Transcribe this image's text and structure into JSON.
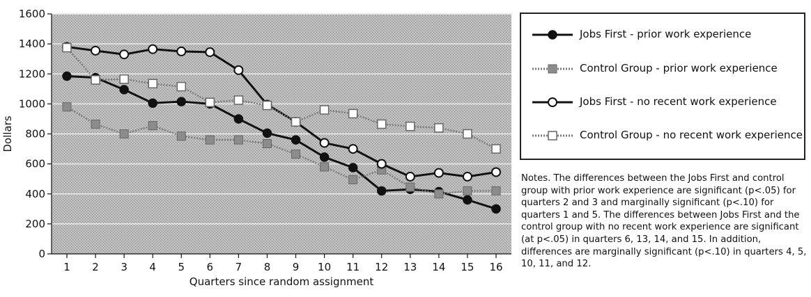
{
  "chart_data": {
    "type": "line",
    "title": "",
    "xlabel": "Quarters since random assignment",
    "ylabel": "Dollars",
    "ylim": [
      0,
      1600
    ],
    "yticks": [
      "0",
      "200",
      "400",
      "600",
      "800",
      "1000",
      "1200",
      "1400",
      "1600"
    ],
    "x": [
      "1",
      "2",
      "3",
      "4",
      "5",
      "6",
      "7",
      "8",
      "9",
      "10",
      "11",
      "12",
      "13",
      "14",
      "15",
      "16"
    ],
    "grid": true,
    "legend_position": "right",
    "series": [
      {
        "name": "Jobs First - prior work experience",
        "values": [
          1185,
          1175,
          1095,
          1005,
          1015,
          1000,
          900,
          805,
          760,
          645,
          575,
          420,
          430,
          415,
          360,
          300
        ],
        "color": "#111111",
        "marker": "filled-circle",
        "line": "solid"
      },
      {
        "name": "Control Group - prior work experience",
        "values": [
          980,
          865,
          800,
          855,
          785,
          760,
          760,
          735,
          665,
          580,
          495,
          560,
          445,
          400,
          420,
          420
        ],
        "color": "#777777",
        "marker": "filled-square",
        "line": "dotted"
      },
      {
        "name": "Jobs First - no recent work experience",
        "values": [
          1380,
          1355,
          1330,
          1365,
          1350,
          1345,
          1225,
          995,
          880,
          740,
          700,
          600,
          515,
          540,
          515,
          545
        ],
        "color": "#111111",
        "marker": "open-circle",
        "line": "solid"
      },
      {
        "name": "Control Group - no recent work experience",
        "values": [
          1375,
          1160,
          1165,
          1135,
          1115,
          1010,
          1025,
          990,
          880,
          960,
          935,
          865,
          850,
          840,
          800,
          700
        ],
        "color": "#777777",
        "marker": "open-square",
        "line": "dotted"
      }
    ]
  },
  "notes": {
    "text": "Notes. The differences between the Jobs First and control group with prior work experience are significant (p<.05) for quarters 2 and 3 and marginally significant (p<.10) for quarters 1 and 5.  The differences between Jobs First and the control group with no recent work experience are significant (at p<.05) in quarters 6, 13, 14, and 15.  In addition, differences are marginally significant (p<.10) in quarters 4, 5, 10, 11, and 12."
  }
}
